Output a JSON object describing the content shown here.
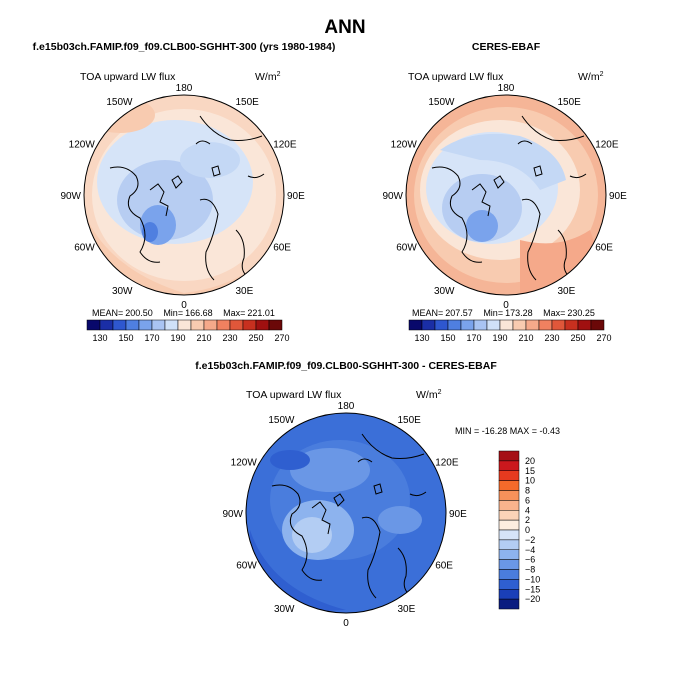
{
  "page_title": "ANN",
  "colors": {
    "ocean_base": "#d4e4f7",
    "diff_base": "#3b6fd8",
    "coast": "#000000"
  },
  "chart_data": [
    {
      "type": "heatmap",
      "projection": "north-polar-stereographic",
      "title": "f.e15b03ch.FAMIP.f09_f09.CLB00-SGHHT-300 (yrs 1980-1984)",
      "variable": "TOA upward LW flux",
      "units": "W/m",
      "units_superscript": "2",
      "longitude_labels": [
        "180",
        "150E",
        "120E",
        "90E",
        "60E",
        "30E",
        "0",
        "30W",
        "60W",
        "90W",
        "120W",
        "150W"
      ],
      "stats": {
        "mean_label": "MEAN=",
        "mean": "200.50",
        "min_label": "Min=",
        "min": "166.68",
        "max_label": "Max=",
        "max": "221.01"
      },
      "colorbar": {
        "orientation": "horizontal",
        "levels": [
          "130",
          "150",
          "170",
          "190",
          "210",
          "230",
          "250",
          "270"
        ],
        "colors": [
          "#08086b",
          "#1a2ea6",
          "#2e57cf",
          "#4f7fe0",
          "#7aa3ec",
          "#a9c4f3",
          "#d0e1f8",
          "#fae6d8",
          "#f8cbb0",
          "#f5a98a",
          "#f08160",
          "#e0573a",
          "#c8301f",
          "#a01010",
          "#6b0808"
        ]
      }
    },
    {
      "type": "heatmap",
      "projection": "north-polar-stereographic",
      "title": "CERES-EBAF",
      "variable": "TOA upward LW flux",
      "units": "W/m",
      "units_superscript": "2",
      "longitude_labels": [
        "180",
        "150E",
        "120E",
        "90E",
        "60E",
        "30E",
        "0",
        "30W",
        "60W",
        "90W",
        "120W",
        "150W"
      ],
      "stats": {
        "mean_label": "MEAN=",
        "mean": "207.57",
        "min_label": "Min=",
        "min": "173.28",
        "max_label": "Max=",
        "max": "230.25"
      },
      "colorbar": {
        "orientation": "horizontal",
        "levels": [
          "130",
          "150",
          "170",
          "190",
          "210",
          "230",
          "250",
          "270"
        ],
        "colors": [
          "#08086b",
          "#1a2ea6",
          "#2e57cf",
          "#4f7fe0",
          "#7aa3ec",
          "#a9c4f3",
          "#d0e1f8",
          "#fae6d8",
          "#f8cbb0",
          "#f5a98a",
          "#f08160",
          "#e0573a",
          "#c8301f",
          "#a01010",
          "#6b0808"
        ]
      }
    },
    {
      "type": "heatmap",
      "projection": "north-polar-stereographic",
      "title": "f.e15b03ch.FAMIP.f09_f09.CLB00-SGHHT-300 - CERES-EBAF",
      "variable": "TOA upward LW flux",
      "units": "W/m",
      "units_superscript": "2",
      "longitude_labels": [
        "180",
        "150E",
        "120E",
        "90E",
        "60E",
        "30E",
        "0",
        "30W",
        "60W",
        "90W",
        "120W",
        "150W"
      ],
      "stats_line": "MIN = -16.28  MAX = -0.43",
      "colorbar": {
        "orientation": "vertical",
        "levels": [
          "20",
          "15",
          "10",
          "8",
          "6",
          "4",
          "2",
          "0",
          "−2",
          "−4",
          "−6",
          "−8",
          "−10",
          "−15",
          "−20"
        ],
        "colors": [
          "#a50f15",
          "#cb181d",
          "#e63a1f",
          "#f46a2a",
          "#f7915a",
          "#f9b38d",
          "#fbd3b8",
          "#fdeee0",
          "#d6e4f8",
          "#b3cdf3",
          "#8db3ee",
          "#6a97e6",
          "#4a7ddd",
          "#2f5fd0",
          "#1a3fb8",
          "#0a1c80"
        ]
      }
    }
  ]
}
